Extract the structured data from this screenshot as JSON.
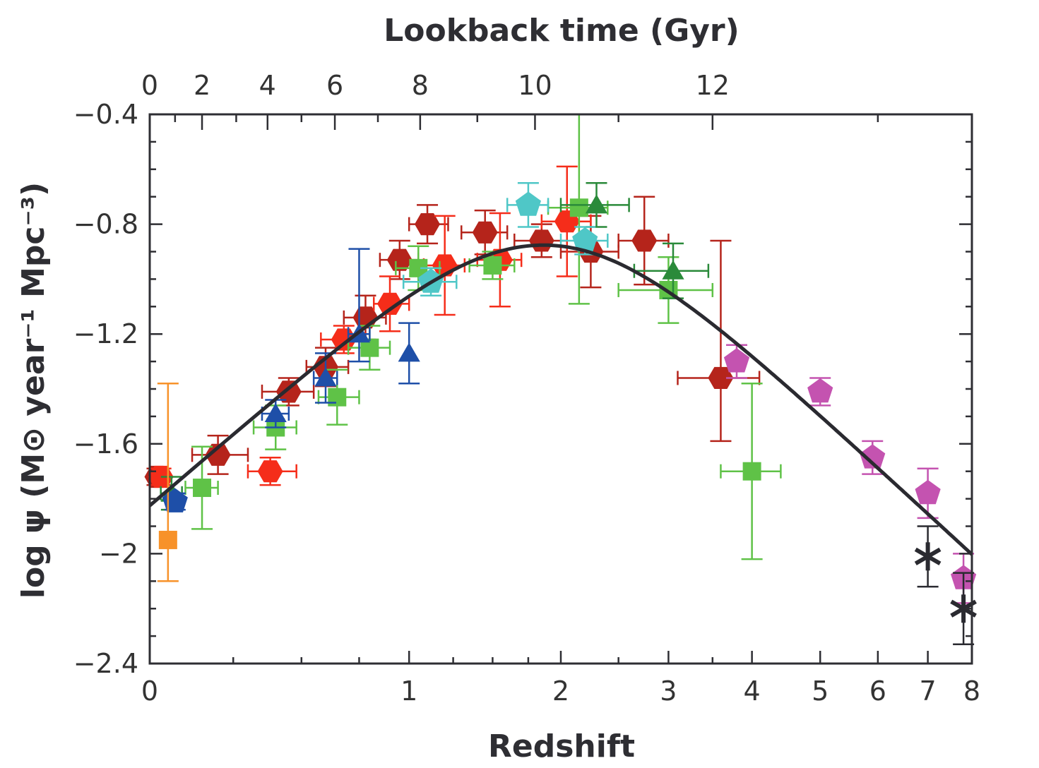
{
  "chart_data": {
    "type": "scatter",
    "title": "",
    "xlabel": "Redshift",
    "ylabel": "log ψ (M⊙ year⁻¹ Mpc⁻³)",
    "top_axis_label": "Lookback time (Gyr)",
    "x_scale": "log(1+z)",
    "xlim": [
      0,
      8
    ],
    "ylim": [
      -2.4,
      -0.4
    ],
    "x_ticks": [
      0,
      1,
      2,
      3,
      4,
      5,
      6,
      7,
      8
    ],
    "x_tick_labels": [
      "0",
      "1",
      "2",
      "3",
      "4",
      "5",
      "6",
      "7",
      "8"
    ],
    "y_ticks": [
      -0.4,
      -0.8,
      -1.2,
      -1.6,
      -2.0,
      -2.4
    ],
    "y_tick_labels": [
      "−0.4",
      "−0.8",
      "−1.2",
      "−1.6",
      "−2",
      "−2.4"
    ],
    "top_ticks": [
      {
        "gyr": 0,
        "z": 0,
        "label": "0"
      },
      {
        "gyr": 2,
        "z": 0.15,
        "label": "2"
      },
      {
        "gyr": 4,
        "z": 0.37,
        "label": "4"
      },
      {
        "gyr": 6,
        "z": 0.64,
        "label": "6"
      },
      {
        "gyr": 8,
        "z": 1.06,
        "label": "8"
      },
      {
        "gyr": 10,
        "z": 1.8,
        "label": "10"
      },
      {
        "gyr": 12,
        "z": 3.5,
        "label": "12"
      }
    ],
    "grid": false,
    "colors": {
      "dark_red": "#b5241b",
      "red": "#f52d1a",
      "light_green": "#5fc247",
      "dark_green": "#2a8a3a",
      "blue": "#1e4fa8",
      "cyan": "#4fc7c7",
      "magenta": "#c453b0",
      "orange": "#f7922a",
      "black": "#2a2a30",
      "fit_line": "#2a2a30"
    },
    "fit_curve": {
      "formula": "0.015 (1+z)^2.7 / (1 + ((1+z)/2.9)^5.6)"
    },
    "series": [
      {
        "marker": "hexagon",
        "color": "dark_red",
        "points": [
          {
            "x": 0.02,
            "y": -1.72,
            "xerr": [
              0.02,
              0.02
            ],
            "yerr": [
              0.03,
              0.03
            ]
          },
          {
            "x": 0.2,
            "y": -1.64,
            "xerr": [
              0.08,
              0.1
            ],
            "yerr": [
              0.07,
              0.07
            ]
          },
          {
            "x": 0.45,
            "y": -1.41,
            "xerr": [
              0.1,
              0.1
            ],
            "yerr": [
              0.05,
              0.05
            ]
          },
          {
            "x": 0.6,
            "y": -1.32,
            "xerr": [
              0.08,
              0.1
            ],
            "yerr": [
              0.07,
              0.07
            ]
          },
          {
            "x": 0.78,
            "y": -1.14,
            "xerr": [
              0.1,
              0.1
            ],
            "yerr": [
              0.08,
              0.08
            ]
          },
          {
            "x": 0.95,
            "y": -0.93,
            "xerr": [
              0.1,
              0.1
            ],
            "yerr": [
              0.07,
              0.07
            ]
          },
          {
            "x": 1.1,
            "y": -0.8,
            "xerr": [
              0.1,
              0.12
            ],
            "yerr": [
              0.07,
              0.07
            ]
          },
          {
            "x": 1.45,
            "y": -0.83,
            "xerr": [
              0.15,
              0.15
            ],
            "yerr": [
              0.08,
              0.08
            ]
          },
          {
            "x": 1.85,
            "y": -0.86,
            "xerr": [
              0.2,
              0.2
            ],
            "yerr": [
              0.06,
              0.06
            ]
          },
          {
            "x": 2.25,
            "y": -0.9,
            "xerr": [
              0.25,
              0.25
            ],
            "yerr": [
              0.13,
              0.13
            ]
          },
          {
            "x": 2.75,
            "y": -0.86,
            "xerr": [
              0.25,
              0.25
            ],
            "yerr": [
              0.16,
              0.16
            ]
          },
          {
            "x": 3.6,
            "y": -1.36,
            "xerr": [
              0.5,
              0.5
            ],
            "yerr": [
              0.23,
              0.5
            ]
          }
        ]
      },
      {
        "marker": "hexagon",
        "color": "red",
        "points": [
          {
            "x": 0.03,
            "y": -1.72,
            "xerr": [
              0.02,
              0.02
            ],
            "yerr": [
              0.03,
              0.03
            ]
          },
          {
            "x": 0.38,
            "y": -1.7,
            "xerr": [
              0.08,
              0.1
            ],
            "yerr": [
              0.05,
              0.05
            ]
          },
          {
            "x": 0.68,
            "y": -1.22,
            "xerr": [
              0.1,
              0.1
            ],
            "yerr": [
              0.05,
              0.05
            ]
          },
          {
            "x": 0.9,
            "y": -1.09,
            "xerr": [
              0.08,
              0.1
            ],
            "yerr": [
              0.1,
              0.1
            ]
          },
          {
            "x": 1.2,
            "y": -0.95,
            "xerr": [
              0.12,
              0.12
            ],
            "yerr": [
              0.18,
              0.18
            ]
          },
          {
            "x": 1.55,
            "y": -0.93,
            "xerr": [
              0.15,
              0.15
            ],
            "yerr": [
              0.17,
              0.17
            ]
          },
          {
            "x": 2.05,
            "y": -0.79,
            "xerr": [
              0.2,
              0.2
            ],
            "yerr": [
              0.2,
              0.2
            ]
          }
        ]
      },
      {
        "marker": "square",
        "color": "light_green",
        "points": [
          {
            "x": 0.15,
            "y": -1.76,
            "xerr": [
              0.05,
              0.05
            ],
            "yerr": [
              0.15,
              0.15
            ]
          },
          {
            "x": 0.4,
            "y": -1.54,
            "xerr": [
              0.08,
              0.08
            ],
            "yerr": [
              0.08,
              0.08
            ]
          },
          {
            "x": 0.65,
            "y": -1.43,
            "xerr": [
              0.08,
              0.1
            ],
            "yerr": [
              0.1,
              0.1
            ]
          },
          {
            "x": 0.8,
            "y": -1.25,
            "xerr": [
              0.1,
              0.1
            ],
            "yerr": [
              0.08,
              0.08
            ]
          },
          {
            "x": 1.05,
            "y": -0.96,
            "xerr": [
              0.12,
              0.12
            ],
            "yerr": [
              0.08,
              0.08
            ]
          },
          {
            "x": 1.5,
            "y": -0.95,
            "xerr": [
              0.15,
              0.15
            ],
            "yerr": [
              0.05,
              0.05
            ]
          },
          {
            "x": 2.15,
            "y": -0.74,
            "xerr": [
              0.25,
              0.25
            ],
            "yerr": [
              0.35,
              0.35
            ]
          },
          {
            "x": 3.0,
            "y": -1.04,
            "xerr": [
              0.5,
              0.5
            ],
            "yerr": [
              0.12,
              0.12
            ]
          },
          {
            "x": 4.0,
            "y": -1.7,
            "xerr": [
              0.4,
              0.4
            ],
            "yerr": [
              0.32,
              0.32
            ]
          }
        ]
      },
      {
        "marker": "triangle",
        "color": "dark_green",
        "points": [
          {
            "x": 0.06,
            "y": -1.78,
            "xerr": [
              0.03,
              0.03
            ],
            "yerr": [
              0.06,
              0.06
            ]
          },
          {
            "x": 2.3,
            "y": -0.73,
            "xerr": [
              0.3,
              0.3
            ],
            "yerr": [
              0.08,
              0.08
            ]
          },
          {
            "x": 3.05,
            "y": -0.97,
            "xerr": [
              0.4,
              0.4
            ],
            "yerr": [
              0.1,
              0.1
            ]
          }
        ]
      },
      {
        "marker": "triangle",
        "color": "blue",
        "points": [
          {
            "x": 0.4,
            "y": -1.49,
            "xerr": [
              0.05,
              0.05
            ],
            "yerr": [
              0.05,
              0.05
            ]
          },
          {
            "x": 0.6,
            "y": -1.36,
            "xerr": [
              0.05,
              0.05
            ],
            "yerr": [
              0.09,
              0.09
            ]
          },
          {
            "x": 0.75,
            "y": -1.2,
            "xerr": [
              0.05,
              0.05
            ],
            "yerr": [
              0.1,
              0.31
            ]
          },
          {
            "x": 1.0,
            "y": -1.27,
            "xerr": [
              0.0,
              0.0
            ],
            "yerr": [
              0.11,
              0.11
            ]
          }
        ]
      },
      {
        "marker": "pentagon",
        "color": "blue",
        "points": [
          {
            "x": 0.07,
            "y": -1.81,
            "xerr": [
              0.02,
              0.02
            ],
            "yerr": [
              0.03,
              0.03
            ]
          }
        ]
      },
      {
        "marker": "pentagon",
        "color": "cyan",
        "points": [
          {
            "x": 1.12,
            "y": -1.01,
            "xerr": [
              0.15,
              0.15
            ],
            "yerr": [
              0.05,
              0.05
            ]
          },
          {
            "x": 1.75,
            "y": -0.73,
            "xerr": [
              0.15,
              0.15
            ],
            "yerr": [
              0.08,
              0.08
            ]
          },
          {
            "x": 2.2,
            "y": -0.86,
            "xerr": [
              0.2,
              0.2
            ],
            "yerr": [
              0.05,
              0.05
            ]
          }
        ]
      },
      {
        "marker": "pentagon",
        "color": "magenta",
        "points": [
          {
            "x": 3.8,
            "y": -1.3,
            "xerr": [
              0,
              0
            ],
            "yerr": [
              0.06,
              0.06
            ]
          },
          {
            "x": 5.0,
            "y": -1.41,
            "xerr": [
              0,
              0
            ],
            "yerr": [
              0.05,
              0.05
            ]
          },
          {
            "x": 5.9,
            "y": -1.65,
            "xerr": [
              0,
              0
            ],
            "yerr": [
              0.06,
              0.06
            ]
          },
          {
            "x": 7.0,
            "y": -1.78,
            "xerr": [
              0,
              0
            ],
            "yerr": [
              0.09,
              0.09
            ]
          },
          {
            "x": 7.8,
            "y": -2.09,
            "xerr": [
              0,
              0
            ],
            "yerr": [
              0.09,
              0.09
            ]
          }
        ]
      },
      {
        "marker": "square",
        "color": "orange",
        "points": [
          {
            "x": 0.05,
            "y": -1.95,
            "xerr": [
              0,
              0
            ],
            "yerr": [
              0.15,
              0.57
            ]
          }
        ]
      },
      {
        "marker": "star",
        "color": "black",
        "points": [
          {
            "x": 7.0,
            "y": -2.01,
            "xerr": [
              0,
              0
            ],
            "yerr": [
              0.11,
              0.11
            ]
          },
          {
            "x": 7.8,
            "y": -2.2,
            "xerr": [
              0,
              0
            ],
            "yerr": [
              0.13,
              0.13
            ]
          }
        ]
      }
    ]
  }
}
